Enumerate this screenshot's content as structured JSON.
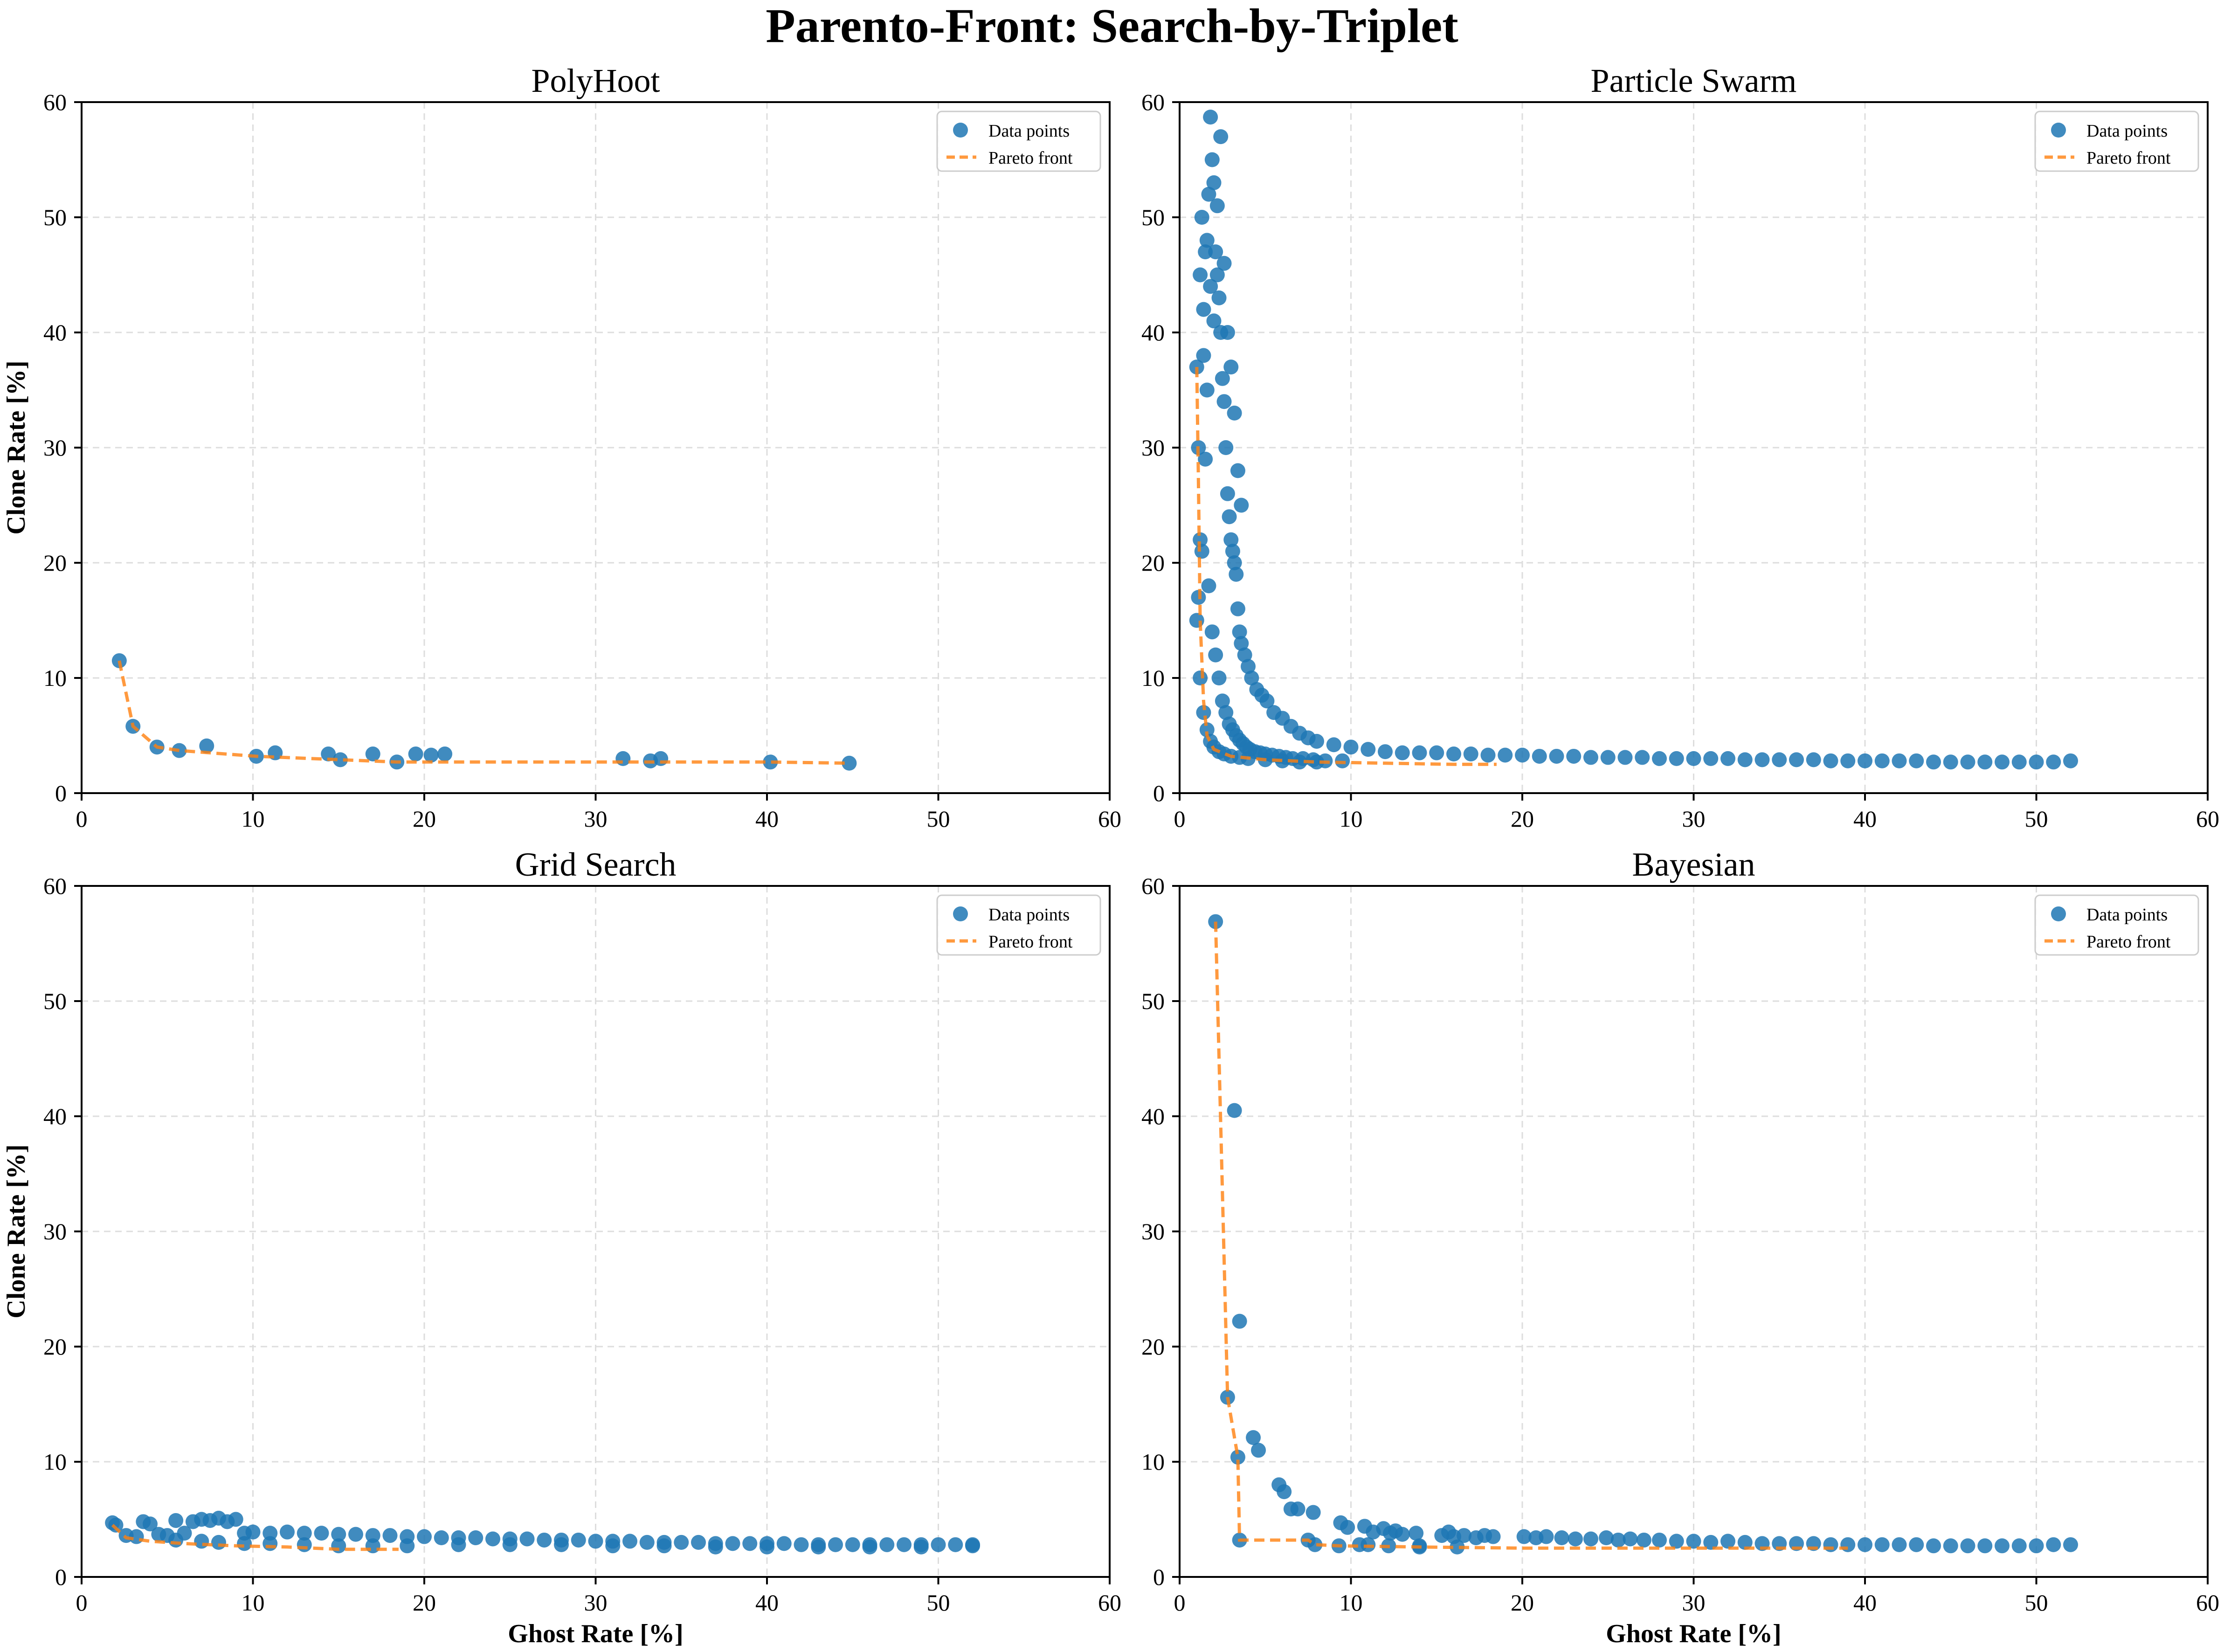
{
  "figure": {
    "suptitle": "Parento-Front: Search-by-Triplet"
  },
  "colors": {
    "points": "#1f77b4",
    "front": "#ff7f0e",
    "grid": "#dddddd",
    "axis": "#000000"
  },
  "legend": {
    "points_label": "Data points",
    "front_label": "Pareto front"
  },
  "chart_data": [
    {
      "type": "scatter",
      "title": "PolyHoot",
      "xlabel": "",
      "ylabel": "Clone Rate [%]",
      "xlim": [
        0,
        60
      ],
      "ylim": [
        0,
        60
      ],
      "xticks": [
        0,
        10,
        20,
        30,
        40,
        50,
        60
      ],
      "yticks": [
        0,
        10,
        20,
        30,
        40,
        50,
        60
      ],
      "grid": true,
      "legend_position": "top-right",
      "series": [
        {
          "name": "Data points",
          "kind": "scatter",
          "x": [
            2.2,
            3.0,
            4.4,
            5.7,
            7.3,
            10.2,
            11.3,
            14.4,
            15.1,
            17.0,
            18.4,
            19.5,
            20.4,
            21.2,
            31.6,
            33.2,
            33.8,
            40.2,
            44.8
          ],
          "y": [
            11.5,
            5.8,
            4.0,
            3.7,
            4.1,
            3.2,
            3.5,
            3.4,
            2.9,
            3.4,
            2.7,
            3.4,
            3.3,
            3.4,
            3.0,
            2.8,
            3.0,
            2.7,
            2.6
          ]
        },
        {
          "name": "Pareto front",
          "kind": "line",
          "x": [
            2.2,
            3.0,
            4.4,
            5.7,
            10.2,
            15.1,
            18.4,
            33.2,
            40.2,
            44.8
          ],
          "y": [
            11.5,
            5.8,
            4.0,
            3.7,
            3.2,
            2.9,
            2.7,
            2.7,
            2.7,
            2.6
          ]
        }
      ]
    },
    {
      "type": "scatter",
      "title": "Particle Swarm",
      "xlabel": "",
      "ylabel": "",
      "xlim": [
        0,
        60
      ],
      "ylim": [
        0,
        60
      ],
      "xticks": [
        0,
        10,
        20,
        30,
        40,
        50,
        60
      ],
      "yticks": [
        0,
        10,
        20,
        30,
        40,
        50,
        60
      ],
      "grid": true,
      "legend_position": "top-right",
      "series": [
        {
          "name": "Data points",
          "kind": "scatter",
          "x": [
            1.0,
            1.1,
            1.2,
            1.3,
            1.4,
            1.5,
            1.6,
            1.7,
            1.8,
            1.9,
            2.0,
            2.1,
            2.2,
            2.3,
            2.4,
            2.5,
            2.6,
            2.7,
            2.8,
            2.9,
            3.0,
            3.1,
            3.2,
            3.3,
            3.4,
            3.5,
            3.6,
            3.8,
            4.0,
            4.2,
            4.5,
            4.8,
            5.1,
            5.5,
            6.0,
            6.5,
            7.0,
            7.5,
            8.0,
            9.0,
            10,
            11,
            12,
            13,
            14,
            15,
            16,
            17,
            18,
            19,
            20,
            21,
            22,
            23,
            24,
            25,
            26,
            27,
            28,
            29,
            30,
            31,
            32,
            33,
            34,
            35,
            36,
            37,
            38,
            39,
            40,
            41,
            42,
            43,
            44,
            45,
            46,
            47,
            48,
            49,
            50,
            51,
            52,
            1.2,
            1.4,
            1.6,
            1.8,
            2.0,
            2.2,
            2.4,
            2.6,
            2.8,
            3.0,
            3.2,
            3.4,
            3.6,
            1.1,
            1.3,
            1.5,
            1.7,
            1.9,
            2.1,
            2.3,
            2.5,
            2.7,
            2.9,
            3.1,
            3.3,
            3.5,
            3.7,
            3.9,
            4.1,
            4.4,
            4.7,
            5.0,
            5.4,
            5.8,
            6.2,
            6.6,
            7.2,
            7.8,
            8.5,
            9.5,
            1.0,
            1.2,
            1.4,
            1.6,
            1.8,
            2.0,
            2.3,
            2.6,
            3.0,
            3.5,
            4.0,
            5.0,
            6.0,
            7.0,
            8.0
          ],
          "y": [
            37.0,
            30.0,
            45.0,
            50.0,
            42.0,
            47.0,
            48.0,
            52.0,
            58.7,
            55.0,
            53.0,
            47.0,
            45.0,
            43.0,
            40.0,
            36.0,
            34.0,
            30.0,
            26.0,
            24.0,
            22.0,
            21.0,
            20.0,
            19.0,
            16.0,
            14.0,
            13.0,
            12.0,
            11.0,
            10.0,
            9.0,
            8.5,
            8.0,
            7.0,
            6.5,
            5.8,
            5.2,
            4.8,
            4.5,
            4.2,
            4.0,
            3.8,
            3.6,
            3.5,
            3.5,
            3.5,
            3.4,
            3.4,
            3.3,
            3.3,
            3.3,
            3.2,
            3.2,
            3.2,
            3.1,
            3.1,
            3.1,
            3.1,
            3.0,
            3.0,
            3.0,
            3.0,
            3.0,
            2.9,
            2.9,
            2.9,
            2.9,
            2.9,
            2.8,
            2.8,
            2.8,
            2.8,
            2.8,
            2.8,
            2.7,
            2.7,
            2.7,
            2.7,
            2.7,
            2.7,
            2.7,
            2.7,
            2.8,
            22.0,
            38.0,
            35.0,
            44.0,
            41.0,
            51.0,
            57.0,
            46.0,
            40.0,
            37.0,
            33.0,
            28.0,
            25.0,
            17.0,
            21.0,
            29.0,
            18.0,
            14.0,
            12.0,
            10.0,
            8.0,
            7.0,
            6.0,
            5.5,
            5.0,
            4.6,
            4.3,
            4.0,
            3.8,
            3.6,
            3.5,
            3.4,
            3.3,
            3.2,
            3.1,
            3.0,
            3.0,
            2.9,
            2.8,
            2.8,
            15.0,
            10.0,
            7.0,
            5.5,
            4.5,
            4.0,
            3.6,
            3.4,
            3.2,
            3.1,
            3.0,
            2.9,
            2.8,
            2.7,
            2.7
          ]
        },
        {
          "name": "Pareto front",
          "kind": "line",
          "x": [
            1.0,
            1.1,
            1.2,
            1.4,
            1.6,
            2.0,
            3.0,
            5.0,
            8.0,
            12.0,
            16.0,
            18.5
          ],
          "y": [
            37.0,
            27.0,
            15.0,
            8.0,
            5.0,
            3.8,
            3.2,
            2.9,
            2.7,
            2.6,
            2.5,
            2.5
          ]
        }
      ]
    },
    {
      "type": "scatter",
      "title": "Grid Search",
      "xlabel": "Ghost Rate [%]",
      "ylabel": "Clone Rate [%]",
      "xlim": [
        0,
        60
      ],
      "ylim": [
        0,
        60
      ],
      "xticks": [
        0,
        10,
        20,
        30,
        40,
        50,
        60
      ],
      "yticks": [
        0,
        10,
        20,
        30,
        40,
        50,
        60
      ],
      "grid": true,
      "legend_position": "top-right",
      "series": [
        {
          "name": "Data points",
          "kind": "scatter",
          "x": [
            1.8,
            2.0,
            2.6,
            3.2,
            3.6,
            4.0,
            4.5,
            5.0,
            5.5,
            6.0,
            6.5,
            7.0,
            7.5,
            8.0,
            8.5,
            9.0,
            9.5,
            10,
            11,
            12,
            13,
            14,
            15,
            16,
            17,
            18,
            19,
            20,
            21,
            22,
            23,
            24,
            25,
            26,
            27,
            28,
            29,
            30,
            31,
            32,
            33,
            34,
            35,
            36,
            37,
            38,
            39,
            40,
            41,
            42,
            43,
            44,
            45,
            46,
            47,
            48,
            49,
            50,
            51,
            52,
            5.5,
            7.0,
            8.0,
            9.5,
            11,
            13,
            15,
            17,
            19,
            22,
            25,
            28,
            31,
            34,
            37,
            40,
            43,
            46,
            49,
            52
          ],
          "y": [
            4.7,
            4.5,
            3.6,
            3.5,
            4.8,
            4.6,
            3.7,
            3.6,
            4.9,
            3.8,
            4.8,
            5.0,
            4.9,
            5.1,
            4.8,
            5.0,
            3.8,
            3.9,
            3.8,
            3.9,
            3.8,
            3.8,
            3.7,
            3.7,
            3.6,
            3.6,
            3.5,
            3.5,
            3.4,
            3.4,
            3.4,
            3.3,
            3.3,
            3.3,
            3.2,
            3.2,
            3.2,
            3.1,
            3.1,
            3.1,
            3.0,
            3.0,
            3.0,
            3.0,
            2.9,
            2.9,
            2.9,
            2.9,
            2.9,
            2.8,
            2.8,
            2.8,
            2.8,
            2.8,
            2.8,
            2.8,
            2.8,
            2.8,
            2.8,
            2.8,
            3.2,
            3.1,
            3.0,
            2.9,
            2.9,
            2.8,
            2.7,
            2.7,
            2.7,
            2.8,
            2.8,
            2.8,
            2.7,
            2.7,
            2.6,
            2.6,
            2.6,
            2.6,
            2.6,
            2.7
          ]
        },
        {
          "name": "Pareto front",
          "kind": "line",
          "x": [
            1.8,
            2.6,
            4.0,
            6.0,
            9.0,
            12.0,
            15.0,
            18.5
          ],
          "y": [
            4.5,
            3.4,
            3.1,
            2.9,
            2.7,
            2.6,
            2.4,
            2.4
          ]
        }
      ]
    },
    {
      "type": "scatter",
      "title": "Bayesian",
      "xlabel": "Ghost Rate [%]",
      "ylabel": "",
      "xlim": [
        0,
        60
      ],
      "ylim": [
        0,
        60
      ],
      "xticks": [
        0,
        10,
        20,
        30,
        40,
        50,
        60
      ],
      "yticks": [
        0,
        10,
        20,
        30,
        40,
        50,
        60
      ],
      "grid": true,
      "legend_position": "top-right",
      "series": [
        {
          "name": "Data points",
          "kind": "scatter",
          "x": [
            2.1,
            3.2,
            3.5,
            2.8,
            3.4,
            3.5,
            4.3,
            4.6,
            5.8,
            6.1,
            6.5,
            6.9,
            7.5,
            7.8,
            7.9,
            9.3,
            9.4,
            9.8,
            10.5,
            10.8,
            11.3,
            11.9,
            12.3,
            12.6,
            13.0,
            13.8,
            14.0,
            15.3,
            15.7,
            16.0,
            16.6,
            17.3,
            17.8,
            18.3,
            20.1,
            20.8,
            21.4,
            22.3,
            23.1,
            24.0,
            24.9,
            25.6,
            26.3,
            27.1,
            28.0,
            29.0,
            30.0,
            31.0,
            32.0,
            33.0,
            34.0,
            35.0,
            36.0,
            37.0,
            38.0,
            39.0,
            40.0,
            41.0,
            42.0,
            43.0,
            44.0,
            45.0,
            46.0,
            47.0,
            48.0,
            49.0,
            50.0,
            51.0,
            52.0,
            11.0,
            12.2,
            14.0,
            16.2
          ],
          "y": [
            56.9,
            40.5,
            22.2,
            15.6,
            10.4,
            3.2,
            12.1,
            11.0,
            8.0,
            7.4,
            5.9,
            5.9,
            3.2,
            5.6,
            2.8,
            2.7,
            4.7,
            4.3,
            2.8,
            4.4,
            3.9,
            4.2,
            3.8,
            4.0,
            3.7,
            3.8,
            2.6,
            3.6,
            3.9,
            3.5,
            3.6,
            3.4,
            3.6,
            3.5,
            3.5,
            3.4,
            3.5,
            3.4,
            3.3,
            3.3,
            3.4,
            3.2,
            3.3,
            3.2,
            3.2,
            3.1,
            3.1,
            3.0,
            3.1,
            3.0,
            2.9,
            2.9,
            2.9,
            2.9,
            2.8,
            2.8,
            2.8,
            2.8,
            2.8,
            2.8,
            2.7,
            2.7,
            2.7,
            2.7,
            2.7,
            2.7,
            2.7,
            2.8,
            2.8,
            2.8,
            2.7,
            2.7,
            2.6
          ]
        },
        {
          "name": "Pareto front",
          "kind": "line",
          "x": [
            2.1,
            2.8,
            3.4,
            3.5,
            7.5,
            7.9,
            9.3,
            14.0,
            20.0,
            30.0,
            39.0
          ],
          "y": [
            56.9,
            15.6,
            10.4,
            3.2,
            3.2,
            2.8,
            2.7,
            2.6,
            2.5,
            2.5,
            2.5
          ]
        }
      ]
    }
  ]
}
